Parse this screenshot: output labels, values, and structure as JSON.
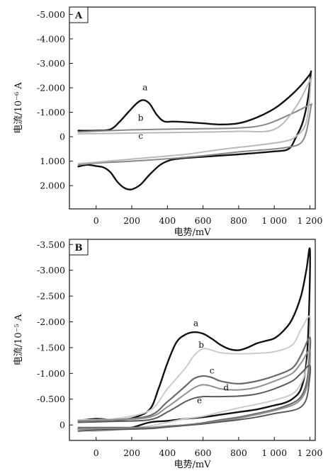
{
  "chart_data": [
    {
      "type": "line",
      "panel": "A",
      "xlabel": "电势/mV",
      "ylabel": "电流/10⁻⁶ A",
      "xlim": [
        -150,
        1230
      ],
      "ylim": [
        -5.3,
        2.95
      ],
      "y_inverted": true,
      "x_ticks": [
        0,
        200,
        400,
        600,
        800,
        1000,
        1200
      ],
      "x_tick_labels": [
        "0",
        "200",
        "400",
        "600",
        "800",
        "1 000",
        "1 200"
      ],
      "y_ticks": [
        -5,
        -4,
        -3,
        -2,
        -1,
        0,
        1,
        2
      ],
      "y_tick_labels": [
        "-5.000",
        "-4.000",
        "-3.000",
        "-2.000",
        "-1.000",
        "0",
        "1.000",
        "2.000"
      ],
      "series": [
        {
          "name": "a",
          "color": "#111111",
          "width": 2.4,
          "x": [
            -100,
            0,
            80,
            130,
            180,
            230,
            265,
            300,
            340,
            380,
            430,
            500,
            600,
            700,
            800,
            900,
            1000,
            1080,
            1150,
            1200,
            1205,
            1190,
            1160,
            1120,
            1080,
            1000,
            800,
            600,
            500,
            420,
            360,
            300,
            250,
            200,
            160,
            120,
            80,
            40,
            0,
            -50,
            -100
          ],
          "y": [
            -0.25,
            -0.25,
            -0.3,
            -0.6,
            -1.0,
            -1.38,
            -1.5,
            -1.35,
            -0.9,
            -0.63,
            -0.62,
            -0.6,
            -0.55,
            -0.5,
            -0.55,
            -0.78,
            -1.15,
            -1.6,
            -2.1,
            -2.55,
            -2.6,
            -1.6,
            -0.6,
            0.05,
            0.5,
            0.6,
            0.72,
            0.82,
            0.87,
            0.95,
            1.15,
            1.55,
            1.95,
            2.15,
            2.1,
            1.85,
            1.45,
            1.25,
            1.2,
            1.15,
            1.22
          ]
        },
        {
          "name": "b",
          "color": "#888888",
          "width": 2.0,
          "x": [
            -100,
            200,
            500,
            800,
            950,
            1100,
            1200,
            1205,
            1180,
            1150,
            1100,
            1000,
            800,
            600,
            400,
            200,
            0,
            -100
          ],
          "y": [
            -0.2,
            -0.28,
            -0.32,
            -0.36,
            -0.5,
            -0.95,
            -1.3,
            -1.2,
            -0.2,
            0.25,
            0.4,
            0.5,
            0.62,
            0.78,
            0.9,
            1.0,
            1.08,
            1.15
          ]
        },
        {
          "name": "c",
          "color": "#b9b9b9",
          "width": 2.0,
          "x": [
            -100,
            200,
            500,
            800,
            1000,
            1120,
            1200,
            1205,
            1180,
            1120,
            1050,
            900,
            700,
            500,
            300,
            100,
            -100
          ],
          "y": [
            -0.12,
            -0.15,
            -0.18,
            -0.22,
            -0.3,
            -1.2,
            -2.3,
            -2.25,
            -0.6,
            0.0,
            0.2,
            0.35,
            0.52,
            0.72,
            0.85,
            0.98,
            1.1
          ]
        }
      ],
      "annotations": [
        {
          "text": "a",
          "x": 275,
          "y": -1.9
        },
        {
          "text": "b",
          "x": 250,
          "y": -0.65
        },
        {
          "text": "c",
          "x": 250,
          "y": 0.08
        }
      ]
    },
    {
      "type": "line",
      "panel": "B",
      "xlabel": "电势/mV",
      "ylabel": "电流/10⁻⁵ A",
      "xlim": [
        -150,
        1230
      ],
      "ylim": [
        -3.6,
        0.3
      ],
      "y_inverted": true,
      "x_ticks": [
        0,
        200,
        400,
        600,
        800,
        1000,
        1200
      ],
      "x_tick_labels": [
        "0",
        "200",
        "400",
        "600",
        "800",
        "1 000",
        "1 200"
      ],
      "y_ticks": [
        -3.5,
        -3,
        -2.5,
        -2,
        -1.5,
        -1,
        -0.5,
        0
      ],
      "y_tick_labels": [
        "-3.500",
        "-3.000",
        "-2.500",
        "-2.000",
        "-1.500",
        "-1.000",
        "-0.500",
        "0"
      ],
      "series": [
        {
          "name": "a",
          "color": "#111111",
          "width": 2.4,
          "x": [
            -100,
            0,
            100,
            200,
            300,
            350,
            400,
            450,
            500,
            550,
            600,
            650,
            700,
            750,
            800,
            850,
            900,
            950,
            1000,
            1050,
            1100,
            1150,
            1180,
            1200,
            1195,
            1180,
            1150,
            1100,
            1050,
            1000,
            900,
            800,
            700,
            600,
            500,
            400,
            300,
            200,
            100,
            0,
            -100
          ],
          "y": [
            -0.08,
            -0.12,
            -0.1,
            -0.13,
            -0.3,
            -0.7,
            -1.2,
            -1.6,
            -1.75,
            -1.8,
            -1.77,
            -1.67,
            -1.55,
            -1.47,
            -1.45,
            -1.5,
            -1.58,
            -1.63,
            -1.68,
            -1.82,
            -2.05,
            -2.5,
            -3.0,
            -3.4,
            -2.2,
            -1.2,
            -0.7,
            -0.5,
            -0.42,
            -0.38,
            -0.3,
            -0.25,
            -0.2,
            -0.15,
            -0.12,
            -0.08,
            -0.05,
            0.05,
            0.08,
            0.1,
            0.08
          ]
        },
        {
          "name": "b",
          "color": "#cccccc",
          "width": 2.0,
          "x": [
            -100,
            100,
            300,
            400,
            500,
            550,
            600,
            650,
            700,
            800,
            900,
            1000,
            1100,
            1150,
            1200,
            1195,
            1180,
            1150,
            1100,
            1000,
            900,
            800,
            700,
            600,
            500,
            400,
            300,
            200,
            100,
            0,
            -100
          ],
          "y": [
            -0.1,
            -0.12,
            -0.28,
            -0.7,
            -1.1,
            -1.35,
            -1.48,
            -1.45,
            -1.4,
            -1.38,
            -1.39,
            -1.42,
            -1.55,
            -1.85,
            -2.1,
            -1.5,
            -1.1,
            -0.8,
            -0.6,
            -0.48,
            -0.4,
            -0.33,
            -0.25,
            -0.17,
            -0.12,
            -0.05,
            0.02,
            0.06,
            0.1,
            0.12,
            0.1
          ]
        },
        {
          "name": "c",
          "color": "#6a6a6a",
          "width": 2.2,
          "x": [
            -100,
            100,
            300,
            400,
            500,
            550,
            600,
            650,
            700,
            800,
            900,
            1000,
            1100,
            1150,
            1200,
            1195,
            1180,
            1150,
            1100,
            1000,
            900,
            800,
            700,
            600,
            500,
            400,
            300,
            200,
            100,
            0,
            -100
          ],
          "y": [
            -0.08,
            -0.1,
            -0.18,
            -0.45,
            -0.75,
            -0.9,
            -0.95,
            -0.92,
            -0.85,
            -0.8,
            -0.85,
            -0.95,
            -1.1,
            -1.35,
            -1.7,
            -1.2,
            -0.8,
            -0.55,
            -0.42,
            -0.3,
            -0.22,
            -0.15,
            -0.1,
            -0.04,
            0.0,
            0.03,
            0.05,
            0.05,
            0.05,
            0.05,
            0.05
          ]
        },
        {
          "name": "d",
          "color": "#8f8f8f",
          "width": 2.0,
          "x": [
            -100,
            100,
            300,
            400,
            500,
            550,
            600,
            650,
            700,
            800,
            900,
            1000,
            1100,
            1150,
            1200,
            1195,
            1180,
            1150,
            1100,
            1000,
            900,
            800,
            700,
            600,
            500,
            400,
            300,
            200,
            100,
            0,
            -100
          ],
          "y": [
            -0.08,
            -0.1,
            -0.15,
            -0.35,
            -0.6,
            -0.72,
            -0.78,
            -0.75,
            -0.7,
            -0.68,
            -0.73,
            -0.85,
            -1.0,
            -1.2,
            -1.45,
            -1.0,
            -0.7,
            -0.5,
            -0.38,
            -0.28,
            -0.2,
            -0.13,
            -0.08,
            -0.03,
            0.0,
            0.02,
            0.05,
            0.06,
            0.07,
            0.08,
            0.08
          ]
        },
        {
          "name": "e",
          "color": "#5a5a5a",
          "width": 2.0,
          "x": [
            -100,
            100,
            300,
            400,
            500,
            550,
            600,
            650,
            700,
            800,
            900,
            1000,
            1100,
            1150,
            1200,
            1195,
            1180,
            1150,
            1100,
            1000,
            900,
            800,
            700,
            600,
            500,
            400,
            300,
            200,
            100,
            0,
            -100
          ],
          "y": [
            -0.05,
            -0.07,
            -0.1,
            -0.25,
            -0.45,
            -0.52,
            -0.55,
            -0.55,
            -0.55,
            -0.56,
            -0.6,
            -0.7,
            -0.85,
            -1.0,
            -1.15,
            -0.8,
            -0.5,
            -0.35,
            -0.28,
            -0.22,
            -0.15,
            -0.1,
            -0.06,
            -0.02,
            0.01,
            0.04,
            0.07,
            0.08,
            0.09,
            0.1,
            0.12
          ]
        }
      ],
      "annotations": [
        {
          "text": "a",
          "x": 560,
          "y": -1.92
        },
        {
          "text": "b",
          "x": 590,
          "y": -1.5
        },
        {
          "text": "c",
          "x": 650,
          "y": -1.0
        },
        {
          "text": "d",
          "x": 730,
          "y": -0.67
        },
        {
          "text": "e",
          "x": 580,
          "y": -0.42
        }
      ]
    }
  ]
}
